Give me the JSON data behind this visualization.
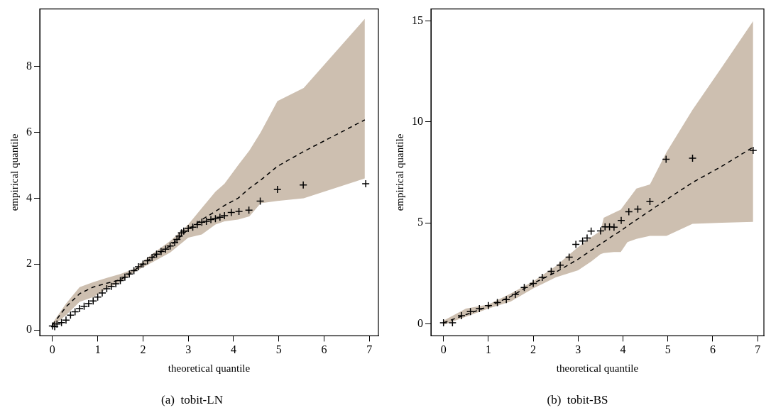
{
  "chart_data": [
    {
      "type": "scatter",
      "title": "(a)  tobit-LN",
      "xlabel": "theoretical quantile",
      "ylabel": "empirical quantile",
      "xlim": [
        -0.28,
        7.2
      ],
      "ylim": [
        -0.18,
        9.75
      ],
      "xticks": [
        0,
        1,
        2,
        3,
        4,
        5,
        6,
        7
      ],
      "yticks": [
        0,
        2,
        4,
        6,
        8
      ],
      "grid": false,
      "legend": false,
      "series": [
        {
          "type": "line",
          "color": "#000000",
          "line_style": "dashed",
          "marker": "none",
          "x": [
            0,
            0.3,
            0.6,
            0.9,
            1.2,
            1.5,
            1.8,
            2.2,
            2.6,
            3.0,
            3.3,
            3.6,
            3.8,
            4.1,
            4.35,
            4.6,
            4.97,
            5.55,
            6.9
          ],
          "values": [
            0.15,
            0.7,
            1.1,
            1.3,
            1.42,
            1.52,
            1.8,
            2.2,
            2.55,
            3.05,
            3.35,
            3.6,
            3.78,
            4.0,
            4.3,
            4.55,
            4.97,
            5.42,
            6.38
          ],
          "upper": [
            0.2,
            0.8,
            1.3,
            1.45,
            1.58,
            1.7,
            1.85,
            2.3,
            2.7,
            3.2,
            3.7,
            4.2,
            4.44,
            5.0,
            5.45,
            6.0,
            6.95,
            7.35,
            9.45
          ],
          "lower": [
            0.1,
            0.45,
            0.85,
            1.0,
            1.25,
            1.45,
            1.75,
            2.05,
            2.35,
            2.8,
            2.9,
            3.2,
            3.3,
            3.35,
            3.45,
            3.85,
            3.92,
            4.0,
            4.6
          ]
        },
        {
          "color": "#000000",
          "marker": "cross",
          "x": [
            0.0,
            0.05,
            0.1,
            0.2,
            0.3,
            0.4,
            0.5,
            0.6,
            0.7,
            0.8,
            0.9,
            1.0,
            1.1,
            1.2,
            1.3,
            1.4,
            1.5,
            1.6,
            1.7,
            1.8,
            1.9,
            2.0,
            2.1,
            2.2,
            2.3,
            2.4,
            2.5,
            2.6,
            2.7,
            2.75,
            2.8,
            2.85,
            2.9,
            3.0,
            3.1,
            3.2,
            3.3,
            3.4,
            3.5,
            3.6,
            3.7,
            3.8,
            3.95,
            4.12,
            4.34,
            4.59,
            4.97,
            5.54,
            6.92
          ],
          "values": [
            0.12,
            0.1,
            0.18,
            0.22,
            0.3,
            0.45,
            0.55,
            0.65,
            0.72,
            0.8,
            0.88,
            1.0,
            1.12,
            1.25,
            1.32,
            1.4,
            1.5,
            1.6,
            1.7,
            1.8,
            1.92,
            2.0,
            2.1,
            2.2,
            2.3,
            2.38,
            2.45,
            2.55,
            2.65,
            2.75,
            2.85,
            2.95,
            3.0,
            3.08,
            3.12,
            3.2,
            3.27,
            3.3,
            3.35,
            3.38,
            3.42,
            3.47,
            3.57,
            3.6,
            3.64,
            3.91,
            4.27,
            4.4,
            4.44
          ]
        }
      ]
    },
    {
      "type": "scatter",
      "title": "(b)  tobit-BS",
      "xlabel": "theoretical quantile",
      "ylabel": "empirical quantile",
      "xlim": [
        -0.28,
        7.14
      ],
      "ylim": [
        -0.6,
        15.6
      ],
      "xticks": [
        0,
        1,
        2,
        3,
        4,
        5,
        6,
        7
      ],
      "yticks": [
        0,
        5,
        10,
        15
      ],
      "grid": false,
      "legend": false,
      "series": [
        {
          "type": "line",
          "color": "#000000",
          "line_style": "dashed",
          "marker": "none",
          "x": [
            0,
            0.5,
            1.0,
            1.5,
            2.0,
            2.5,
            3.0,
            3.3,
            3.5,
            3.57,
            3.8,
            3.95,
            4.1,
            4.3,
            4.6,
            4.97,
            5.55,
            6.2,
            6.9
          ],
          "values": [
            0.05,
            0.45,
            0.85,
            1.35,
            2.0,
            2.55,
            3.2,
            3.65,
            3.95,
            4.05,
            4.4,
            4.6,
            4.85,
            5.15,
            5.6,
            6.15,
            7.0,
            7.8,
            8.75
          ],
          "upper": [
            0.15,
            0.75,
            0.95,
            1.5,
            2.1,
            2.85,
            3.8,
            4.3,
            4.6,
            5.25,
            5.5,
            5.65,
            6.1,
            6.7,
            6.9,
            8.5,
            10.6,
            12.7,
            15.0
          ],
          "lower": [
            -0.05,
            0.35,
            0.75,
            1.1,
            1.75,
            2.3,
            2.65,
            3.1,
            3.45,
            3.5,
            3.55,
            3.55,
            4.05,
            4.2,
            4.35,
            4.35,
            4.95,
            5.0,
            5.05
          ]
        },
        {
          "color": "#000000",
          "marker": "cross",
          "x": [
            0,
            0.2,
            0.4,
            0.6,
            0.8,
            1.0,
            1.2,
            1.4,
            1.6,
            1.8,
            2.0,
            2.2,
            2.4,
            2.6,
            2.8,
            2.95,
            3.1,
            3.2,
            3.29,
            3.5,
            3.6,
            3.7,
            3.8,
            3.96,
            4.13,
            4.33,
            4.6,
            4.96,
            5.55,
            6.9
          ],
          "values": [
            0.05,
            0.05,
            0.4,
            0.6,
            0.75,
            0.9,
            1.05,
            1.2,
            1.45,
            1.8,
            2.0,
            2.3,
            2.6,
            2.9,
            3.3,
            3.93,
            4.1,
            4.25,
            4.59,
            4.6,
            4.8,
            4.8,
            4.78,
            5.12,
            5.55,
            5.68,
            6.06,
            8.15,
            8.2,
            8.59
          ]
        }
      ]
    }
  ]
}
